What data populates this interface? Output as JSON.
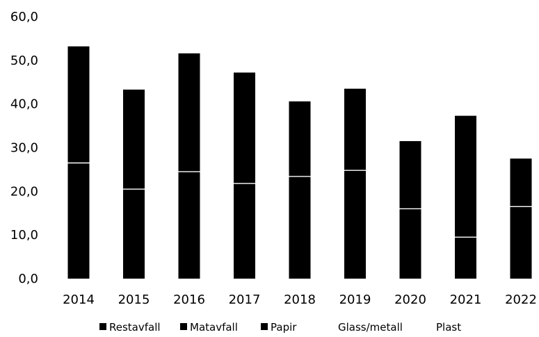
{
  "chart_data": {
    "type": "bar",
    "stacked": true,
    "categories": [
      "2014",
      "2015",
      "2016",
      "2017",
      "2018",
      "2019",
      "2020",
      "2021",
      "2022"
    ],
    "series": [
      {
        "name": "Restavfall",
        "values": [
          26.5,
          20.5,
          24.5,
          21.8,
          23.4,
          24.8,
          16.0,
          9.5,
          16.5
        ]
      },
      {
        "name": "Matavfall",
        "values": [
          26.7,
          22.8,
          27.1,
          25.4,
          17.2,
          18.7,
          15.5,
          27.8,
          11.0
        ]
      },
      {
        "name": "Papir",
        "values": [
          0,
          0,
          0,
          0,
          0,
          0,
          0,
          0,
          0
        ]
      },
      {
        "name": "Glass/metall",
        "values": [
          0,
          0,
          0,
          0,
          0,
          0,
          0,
          0,
          0
        ]
      },
      {
        "name": "Plast",
        "values": [
          0,
          0,
          0,
          0,
          0,
          0,
          0,
          0,
          0
        ]
      }
    ],
    "ylim": [
      0,
      60
    ],
    "yticks": [
      "0,0",
      "10,0",
      "20,0",
      "30,0",
      "40,0",
      "50,0",
      "60,0"
    ],
    "grid": false,
    "legend": "bottom",
    "colors": {
      "bar": "#000000",
      "segment_divider": "#ffffff",
      "background": "#ffffff"
    },
    "legend_markers": [
      true,
      true,
      true,
      false,
      false
    ]
  }
}
